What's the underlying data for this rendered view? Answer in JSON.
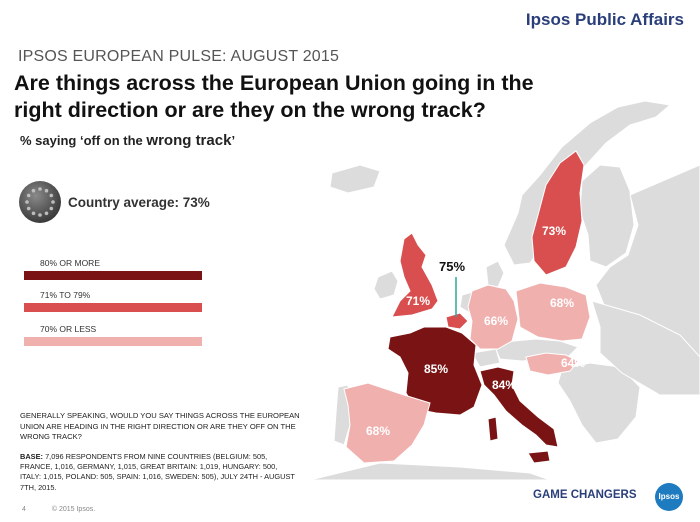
{
  "brand": "Ipsos Public Affairs",
  "kicker": "IPSOS EUROPEAN PULSE: AUGUST 2015",
  "headline": "Are things across the European Union going in the right direction or are they on the wrong track?",
  "subtitle": {
    "prefix": "% saying ‘off on the ",
    "emphasis": "wrong track",
    "suffix": "’"
  },
  "average_label": "Country average: 73%",
  "legend": [
    {
      "label": "80% OR MORE",
      "color": "#7a1414"
    },
    {
      "label": "71% TO 79%",
      "color": "#d94f4f"
    },
    {
      "label": "70% OR LESS",
      "color": "#f0b0ae"
    }
  ],
  "question_text": "GENERALLY SPEAKING, WOULD YOU SAY THINGS ACROSS THE EUROPEAN UNION ARE HEADING IN THE RIGHT DIRECTION OR ARE THEY OFF ON THE WRONG TRACK?",
  "base_label": "BASE:",
  "base_text": "7,096 RESPONDENTS FROM NINE COUNTRIES (BELGIUM: 505, FRANCE, 1,016, GERMANY, 1,015, GREAT BRITAIN: 1,019, HUNGARY: 500, ITALY: 1,015, POLAND: 505, SPAIN: 1,016, SWEDEN: 505), JULY 24TH - AUGUST 7TH, 2015.",
  "footer": {
    "page_number": "4",
    "copyright": "© 2015 Ipsos."
  },
  "tagline": "GAME CHANGERS",
  "logo_text": "Ipsos",
  "map": {
    "colors": {
      "dark": "#7a1414",
      "mid": "#d94f4f",
      "light": "#f0b0ae",
      "other": "#dcdcdc",
      "border": "#ffffff"
    },
    "countries": [
      {
        "name": "Sweden",
        "value": 73,
        "label": "73%",
        "band": "mid"
      },
      {
        "name": "Great Britain",
        "value": 71,
        "label": "71%",
        "band": "mid"
      },
      {
        "name": "Belgium",
        "value": 75,
        "label": "75%",
        "band": "mid"
      },
      {
        "name": "Germany",
        "value": 66,
        "label": "66%",
        "band": "light"
      },
      {
        "name": "Poland",
        "value": 68,
        "label": "68%",
        "band": "light"
      },
      {
        "name": "Hungary",
        "value": 64,
        "label": "64%",
        "band": "light"
      },
      {
        "name": "France",
        "value": 85,
        "label": "85%",
        "band": "dark"
      },
      {
        "name": "Italy",
        "value": 84,
        "label": "84%",
        "band": "dark"
      },
      {
        "name": "Spain",
        "value": 68,
        "label": "68%",
        "band": "light"
      }
    ]
  }
}
